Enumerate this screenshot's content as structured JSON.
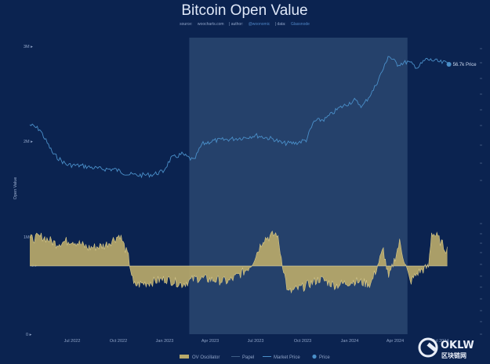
{
  "brand": {
    "logo_letter": "W"
  },
  "watermark": {
    "text": "OKLW",
    "subtext": "区块链网"
  },
  "chart_data": {
    "type": "line",
    "title": "Bitcoin Open Value",
    "subtitle": {
      "source_prefix": "source:",
      "source": "woocharts.com",
      "author_prefix": "| author:",
      "author": "@woonomic",
      "data_prefix": "| data:",
      "data": "Glassnode"
    },
    "ylabel": "Open Value",
    "y_ticks_left": [
      "3M ▸",
      "2M ▸",
      "1M ▸",
      "0 ▸",
      "0 ▸"
    ],
    "x_ticks": [
      "Jul 2022",
      "Oct 2022",
      "Jan 2023",
      "Apr 2023",
      "Jul 2023",
      "Oct 2023",
      "Jan 2024",
      "Apr 2024",
      "Jul 2024"
    ],
    "x_range": [
      "2022-05-01",
      "2024-07-31"
    ],
    "highlight_range": [
      "2023-03-01",
      "2024-04-20"
    ],
    "price_label": "56.7k Price",
    "legend": [
      "OV Oscillator",
      "Papel",
      "Market Price",
      "Price"
    ],
    "colors": {
      "background": "#0b2350",
      "price_line": "#4a8fc9",
      "oscillator_fill": "#b8a96a",
      "oscillator_stroke": "#d8c98a",
      "highlight": "#2a4670"
    },
    "market_price_series": {
      "name": "Market Price",
      "x": [
        "2022-05-01",
        "2022-05-20",
        "2022-06-15",
        "2022-07-10",
        "2022-08-10",
        "2022-09-10",
        "2022-10-10",
        "2022-11-05",
        "2022-11-25",
        "2022-12-20",
        "2023-01-10",
        "2023-01-25",
        "2023-02-15",
        "2023-03-10",
        "2023-03-25",
        "2023-04-15",
        "2023-05-15",
        "2023-06-15",
        "2023-07-05",
        "2023-08-10",
        "2023-08-25",
        "2023-09-20",
        "2023-10-10",
        "2023-10-25",
        "2023-11-15",
        "2023-12-10",
        "2024-01-10",
        "2024-01-25",
        "2024-02-15",
        "2024-03-10",
        "2024-03-14",
        "2024-04-01",
        "2024-04-20",
        "2024-05-10",
        "2024-05-25",
        "2024-06-10",
        "2024-06-25",
        "2024-07-05"
      ],
      "values": [
        36.7,
        35.2,
        27.2,
        23.8,
        23.4,
        22.5,
        22.3,
        20.7,
        20.4,
        20.6,
        21.6,
        25.8,
        27.2,
        25.1,
        30.4,
        31.5,
        32.0,
        32.6,
        33.3,
        32.0,
        30.7,
        30.8,
        31.8,
        37.8,
        38.5,
        41.9,
        44.6,
        42.6,
        47.9,
        56.6,
        59.1,
        56.2,
        57.0,
        55.2,
        57.8,
        57.4,
        56.7,
        56.7
      ]
    },
    "oscillator_series": {
      "name": "OV Oscillator",
      "x": [
        "2022-05-01",
        "2022-05-25",
        "2022-06-20",
        "2022-07-20",
        "2022-08-20",
        "2022-09-20",
        "2022-10-20",
        "2022-11-05",
        "2022-11-15",
        "2022-12-15",
        "2023-01-15",
        "2023-02-15",
        "2023-03-15",
        "2023-04-15",
        "2023-05-15",
        "2023-06-15",
        "2023-06-28",
        "2023-07-20",
        "2023-08-15",
        "2023-09-05",
        "2023-10-05",
        "2023-11-05",
        "2023-12-05",
        "2024-01-10",
        "2024-02-10",
        "2024-03-05",
        "2024-03-15",
        "2024-04-05",
        "2024-04-25",
        "2024-05-10",
        "2024-05-30",
        "2024-06-05",
        "2024-06-15",
        "2024-06-30",
        "2024-07-05"
      ],
      "values": [
        0.62,
        0.68,
        0.52,
        0.6,
        0.42,
        0.47,
        0.72,
        0.2,
        -0.45,
        -0.38,
        -0.3,
        -0.42,
        -0.28,
        -0.32,
        -0.36,
        -0.12,
        0.05,
        0.62,
        0.75,
        -0.62,
        -0.48,
        -0.3,
        -0.45,
        -0.35,
        -0.42,
        0.38,
        -0.3,
        0.55,
        -0.38,
        -0.15,
        -0.02,
        0.78,
        0.68,
        0.42,
        0.38
      ]
    }
  }
}
